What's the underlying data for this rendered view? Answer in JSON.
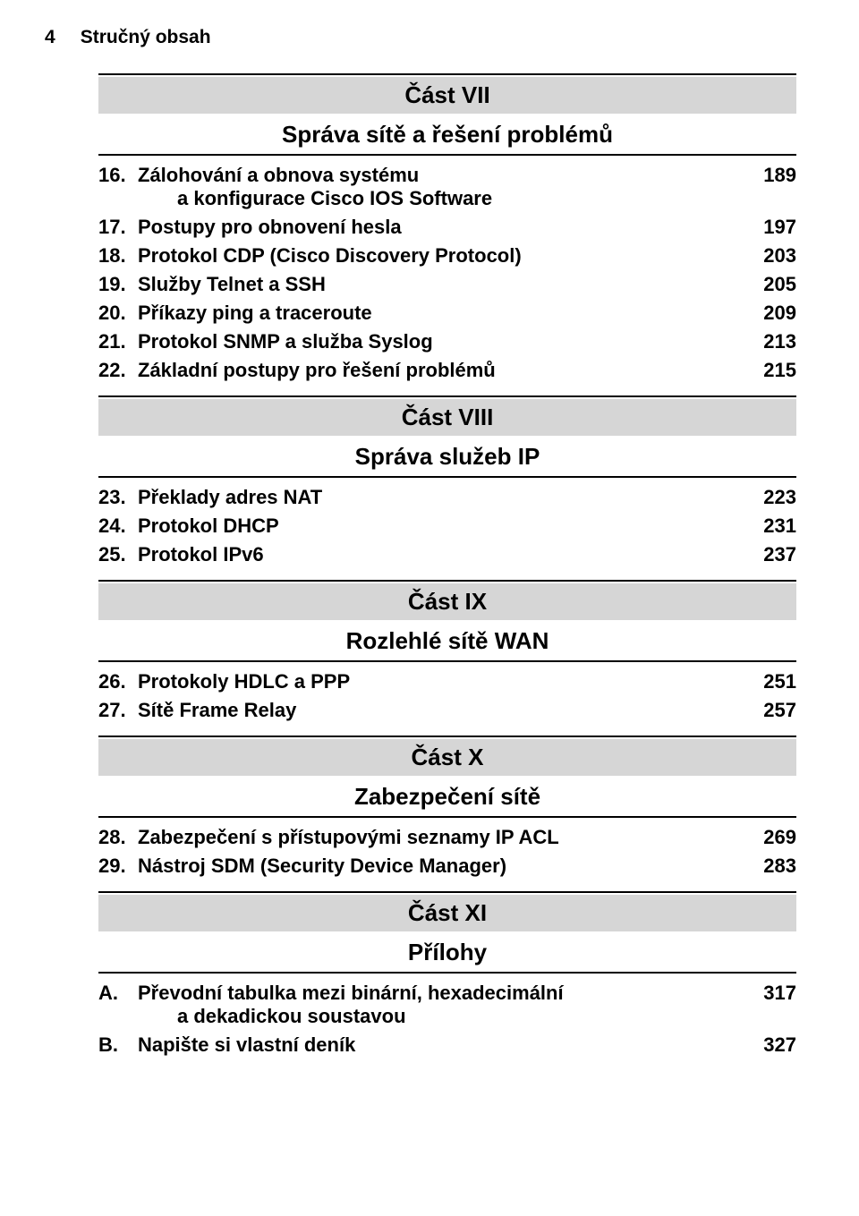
{
  "font_family": "Arial, Helvetica, sans-serif",
  "text_color": "#000000",
  "page_bg": "#ffffff",
  "gray_bg": "#d6d6d6",
  "rule_color": "#000000",
  "header": {
    "page_number": "4",
    "title": "Stručný obsah"
  },
  "sections": [
    {
      "label": "Část VII",
      "subtitle": "Správa sítě a řešení problémů",
      "entries": [
        {
          "num": "16.",
          "title": "Zálohování a obnova systému",
          "cont": "a konfigurace Cisco IOS Software",
          "page": "189"
        },
        {
          "num": "17.",
          "title": "Postupy pro obnovení hesla",
          "page": "197"
        },
        {
          "num": "18.",
          "title": "Protokol CDP (Cisco Discovery Protocol)",
          "page": "203"
        },
        {
          "num": "19.",
          "title": "Služby Telnet a SSH",
          "page": "205"
        },
        {
          "num": "20.",
          "title": "Příkazy ping a traceroute",
          "page": "209"
        },
        {
          "num": "21.",
          "title": "Protokol SNMP a služba Syslog",
          "page": "213"
        },
        {
          "num": "22.",
          "title": "Základní postupy pro řešení problémů",
          "page": "215"
        }
      ]
    },
    {
      "label": "Část VIII",
      "subtitle": "Správa služeb IP",
      "entries": [
        {
          "num": "23.",
          "title": "Překlady adres NAT",
          "page": "223"
        },
        {
          "num": "24.",
          "title": "Protokol DHCP",
          "page": "231"
        },
        {
          "num": "25.",
          "title": "Protokol IPv6",
          "page": "237"
        }
      ]
    },
    {
      "label": "Část IX",
      "subtitle": "Rozlehlé sítě WAN",
      "entries": [
        {
          "num": "26.",
          "title": "Protokoly HDLC a PPP",
          "page": "251"
        },
        {
          "num": "27.",
          "title": "Sítě Frame Relay",
          "page": "257"
        }
      ]
    },
    {
      "label": "Část X",
      "subtitle": "Zabezpečení sítě",
      "entries": [
        {
          "num": "28.",
          "title": "Zabezpečení s přístupovými seznamy IP ACL",
          "page": "269"
        },
        {
          "num": "29.",
          "title": "Nástroj SDM (Security Device Manager)",
          "page": "283"
        }
      ]
    },
    {
      "label": "Část XI",
      "subtitle": "Přílohy",
      "entries": [
        {
          "num": "A.",
          "title": "Převodní tabulka mezi binární, hexadecimální",
          "cont": "a dekadickou soustavou",
          "page": "317"
        },
        {
          "num": "B.",
          "title": "Napište si vlastní deník",
          "page": "327"
        }
      ]
    }
  ]
}
